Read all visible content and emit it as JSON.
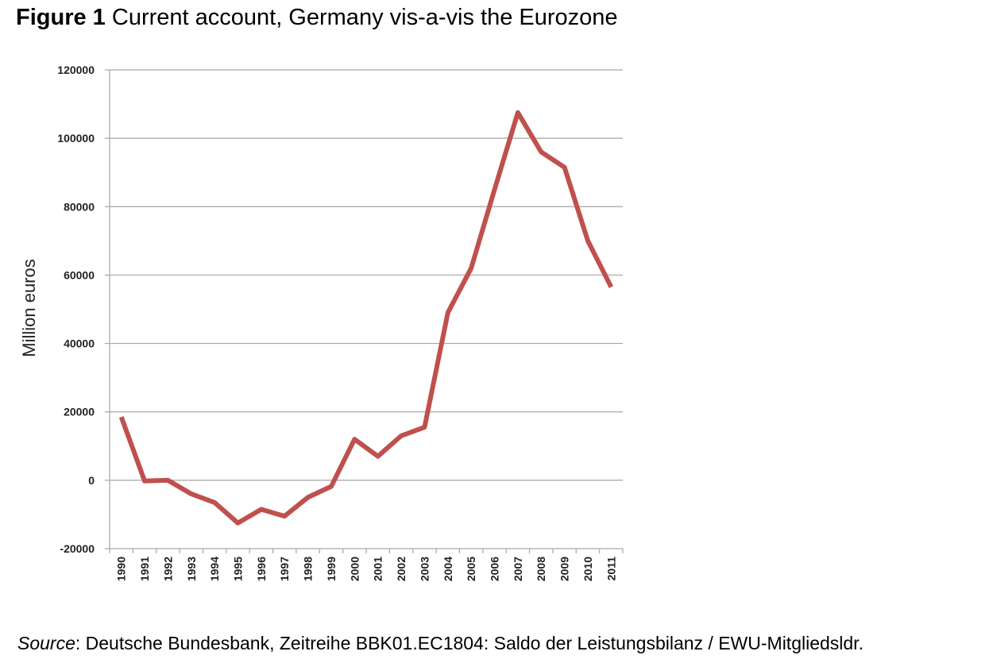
{
  "figure": {
    "label": "Figure 1",
    "title": " Current account, Germany vis-a-vis the Eurozone"
  },
  "source": {
    "label": "Source",
    "text": ": Deutsche Bundesbank, Zeitreihe BBK01.EC1804: Saldo der Leistungsbilanz / EWU-Mitgliedsldr."
  },
  "chart_data": {
    "type": "line",
    "title": "Current account, Germany vis-a-vis the Eurozone",
    "xlabel": "",
    "ylabel": "Million euros",
    "ylim": [
      -20000,
      120000
    ],
    "yticks": [
      -20000,
      0,
      20000,
      40000,
      60000,
      80000,
      100000,
      120000
    ],
    "grid": true,
    "legend": "none",
    "categories": [
      "1990",
      "1991",
      "1992",
      "1993",
      "1994",
      "1995",
      "1996",
      "1997",
      "1998",
      "1999",
      "2000",
      "2001",
      "2002",
      "2003",
      "2004",
      "2005",
      "2006",
      "2007",
      "2008",
      "2009",
      "2010",
      "2011"
    ],
    "series": [
      {
        "color": "#c0504d",
        "values": [
          18500,
          -200,
          0,
          -4000,
          -6500,
          -12500,
          -8500,
          -10500,
          -5000,
          -1800,
          12000,
          7000,
          13000,
          15500,
          49000,
          62000,
          85000,
          107500,
          96000,
          91500,
          70000,
          56500
        ]
      }
    ]
  }
}
